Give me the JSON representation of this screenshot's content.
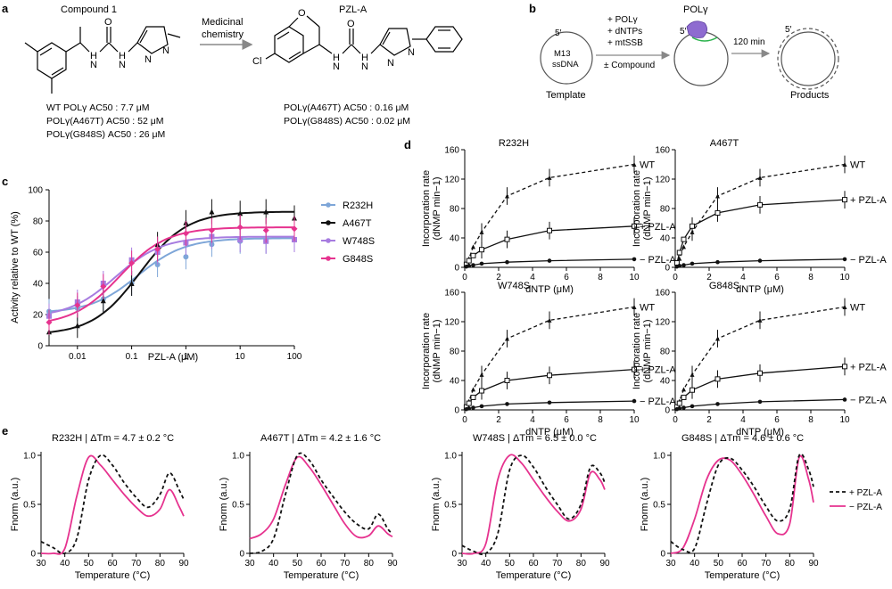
{
  "colors": {
    "R232H": "#7ea6d8",
    "A467T": "#111111",
    "W748S": "#a77ce0",
    "G848S": "#e6338f",
    "minus_pzl": "#e6338f",
    "plus_pzl": "#111111"
  },
  "panel_a": {
    "letter": "a",
    "compound1_title": "Compound 1",
    "arrow_label_1": "Medicinal",
    "arrow_label_2": "chemistry",
    "pzla_title": "PZL-A",
    "atoms": {
      "H": "H",
      "N": "N",
      "O": "O",
      "Cl": "Cl"
    },
    "compound1_ac50": [
      "WT POLγ AC50 : 7.7 μM",
      "POLγ(A467T) AC50 : 52 μM",
      "POLγ(G848S) AC50 : 26 μM"
    ],
    "pzla_ac50": [
      "POLγ(A467T) AC50 : 0.16 μM",
      "POLγ(G848S) AC50 : 0.02 μM"
    ]
  },
  "panel_b": {
    "letter": "b",
    "template_text_1": "M13",
    "template_text_2": "ssDNA",
    "five_prime": "5′",
    "reagents": [
      "+ POLγ",
      "+ dNTPs",
      "+ mtSSB",
      "± Compound"
    ],
    "pol_label": "POLγ",
    "time_label": "120 min",
    "template_label": "Template",
    "products_label": "Products"
  },
  "panel_c": {
    "letter": "c",
    "ylabel": "Activity relative to WT (%)",
    "xlabel": "PZL-A (μM)",
    "yticks": [
      "0",
      "20",
      "40",
      "60",
      "80",
      "100"
    ],
    "xticks": [
      "0.01",
      "0.1",
      "1",
      "10",
      "100"
    ]
  },
  "panel_d": {
    "letter": "d",
    "ylabel_1": "Incorporation rate",
    "ylabel_2": "(dNMP min−1)",
    "xlabel": "dNTP (μM)",
    "yticks": [
      "0",
      "40",
      "80",
      "120",
      "160"
    ],
    "xticks": [
      "0",
      "2",
      "4",
      "6",
      "8",
      "10"
    ],
    "curve_labels": [
      "WT",
      "+ PZL-A",
      "− PZL-A"
    ]
  },
  "panel_e": {
    "letter": "e",
    "ylabel": "Fnorm (a.u.)",
    "xlabel": "Temperature (°C)",
    "yticks": [
      "0",
      "0.5",
      "1.0"
    ],
    "xticks": [
      "30",
      "40",
      "50",
      "60",
      "70",
      "80",
      "90"
    ],
    "legend": [
      "+ PZL-A",
      "− PZL-A"
    ]
  },
  "chart_data": [
    {
      "type": "line",
      "panel": "c",
      "xlabel": "PZL-A (μM)",
      "ylabel": "Activity relative to WT (%)",
      "xscale": "log",
      "xlim": [
        0.003,
        100
      ],
      "ylim": [
        0,
        100
      ],
      "legend_position": "right",
      "x": [
        0.003,
        0.01,
        0.03,
        0.1,
        0.3,
        1,
        3,
        10,
        30,
        100
      ],
      "series": [
        {
          "name": "R232H",
          "values": [
            22,
            24,
            30,
            40,
            52,
            57,
            65,
            67,
            67,
            68
          ],
          "curve": {
            "bottom": 21,
            "top": 69,
            "ec50": 0.13
          }
        },
        {
          "name": "A467T",
          "values": [
            9,
            13,
            29,
            40,
            65,
            79,
            86,
            85,
            86,
            82
          ],
          "curve": {
            "bottom": 7,
            "top": 86,
            "ec50": 0.14
          }
        },
        {
          "name": "W748S",
          "values": [
            19,
            28,
            40,
            55,
            60,
            66,
            70,
            68,
            67,
            68
          ],
          "curve": {
            "bottom": 18,
            "top": 70,
            "ec50": 0.05
          }
        },
        {
          "name": "G848S",
          "values": [
            15,
            26,
            38,
            53,
            62,
            72,
            74,
            76,
            74,
            75
          ],
          "curve": {
            "bottom": 13,
            "top": 76,
            "ec50": 0.06
          }
        }
      ]
    },
    {
      "type": "line",
      "panel": "d",
      "subplots": [
        {
          "title": "R232H",
          "x": [
            0.1,
            0.25,
            0.5,
            1,
            2.5,
            5,
            10
          ],
          "series": [
            {
              "name": "WT",
              "values": [
                5,
                12,
                28,
                48,
                97,
                122,
                140
              ]
            },
            {
              "name": "+ PZL-A",
              "values": [
                4,
                9,
                16,
                24,
                38,
                50,
                56
              ]
            },
            {
              "name": "− PZL-A",
              "values": [
                1,
                2,
                3,
                5,
                7,
                9,
                11
              ]
            }
          ]
        },
        {
          "title": "A467T",
          "x": [
            0.1,
            0.25,
            0.5,
            1,
            2.5,
            5,
            10
          ],
          "series": [
            {
              "name": "WT",
              "values": [
                5,
                12,
                28,
                48,
                97,
                122,
                140
              ]
            },
            {
              "name": "+ PZL-A",
              "values": [
                6,
                20,
                38,
                56,
                74,
                85,
                92
              ]
            },
            {
              "name": "− PZL-A",
              "values": [
                1,
                2,
                3,
                5,
                7,
                9,
                11
              ]
            }
          ]
        },
        {
          "title": "W748S",
          "x": [
            0.1,
            0.25,
            0.5,
            1,
            2.5,
            5,
            10
          ],
          "series": [
            {
              "name": "WT",
              "values": [
                5,
                12,
                28,
                48,
                97,
                122,
                140
              ]
            },
            {
              "name": "+ PZL-A",
              "values": [
                4,
                9,
                17,
                26,
                40,
                47,
                55
              ]
            },
            {
              "name": "− PZL-A",
              "values": [
                1,
                2,
                3,
                5,
                8,
                10,
                12
              ]
            }
          ]
        },
        {
          "title": "G848S",
          "x": [
            0.1,
            0.25,
            0.5,
            1,
            2.5,
            5,
            10
          ],
          "series": [
            {
              "name": "WT",
              "values": [
                5,
                12,
                28,
                48,
                97,
                122,
                140
              ]
            },
            {
              "name": "+ PZL-A",
              "values": [
                4,
                9,
                17,
                27,
                42,
                50,
                59
              ]
            },
            {
              "name": "− PZL-A",
              "values": [
                1,
                2,
                3,
                5,
                8,
                11,
                14
              ]
            }
          ]
        }
      ],
      "xlim": [
        0,
        10
      ],
      "ylim": [
        0,
        160
      ]
    },
    {
      "type": "line",
      "panel": "e",
      "xlim": [
        30,
        90
      ],
      "ylim": [
        0,
        1.0
      ],
      "subplots": [
        {
          "title": "R232H",
          "annotation": "ΔTm = 4.7 ± 0.2 °C",
          "x": [
            30,
            35,
            40,
            45,
            50,
            55,
            60,
            65,
            70,
            75,
            80,
            84,
            88,
            90
          ],
          "series": [
            {
              "name": "− PZL-A",
              "values": [
                0.0,
                0.0,
                0.05,
                0.58,
                0.98,
                0.9,
                0.75,
                0.6,
                0.47,
                0.38,
                0.45,
                0.65,
                0.48,
                0.38
              ]
            },
            {
              "name": "+ PZL-A",
              "values": [
                0.12,
                0.06,
                0.0,
                0.15,
                0.75,
                1.0,
                0.9,
                0.72,
                0.57,
                0.47,
                0.6,
                0.82,
                0.65,
                0.55
              ]
            }
          ]
        },
        {
          "title": "A467T",
          "annotation": "ΔTm = 4.2 ± 1.6 °C",
          "x": [
            30,
            35,
            40,
            45,
            50,
            55,
            60,
            65,
            70,
            75,
            80,
            84,
            88,
            90
          ],
          "series": [
            {
              "name": "− PZL-A",
              "values": [
                0.15,
                0.2,
                0.35,
                0.7,
                0.98,
                0.88,
                0.7,
                0.5,
                0.3,
                0.17,
                0.18,
                0.28,
                0.2,
                0.17
              ]
            },
            {
              "name": "+ PZL-A",
              "values": [
                0.0,
                0.02,
                0.15,
                0.6,
                1.0,
                0.95,
                0.75,
                0.58,
                0.42,
                0.3,
                0.25,
                0.4,
                0.25,
                0.2
              ]
            }
          ]
        },
        {
          "title": "W748S",
          "annotation": "ΔTm = 6.5 ± 0.0 °C",
          "x": [
            30,
            35,
            40,
            45,
            50,
            55,
            60,
            65,
            70,
            75,
            80,
            84,
            88,
            90
          ],
          "series": [
            {
              "name": "− PZL-A",
              "values": [
                0.0,
                0.0,
                0.1,
                0.75,
                1.0,
                0.92,
                0.75,
                0.58,
                0.43,
                0.33,
                0.45,
                0.82,
                0.75,
                0.65
              ]
            },
            {
              "name": "+ PZL-A",
              "values": [
                0.08,
                0.02,
                0.0,
                0.2,
                0.85,
                1.0,
                0.88,
                0.68,
                0.5,
                0.35,
                0.5,
                0.88,
                0.82,
                0.72
              ]
            }
          ]
        },
        {
          "title": "G848S",
          "annotation": "ΔTm = 4.6 ± 0.6 °C",
          "x": [
            30,
            35,
            40,
            45,
            50,
            55,
            60,
            65,
            70,
            75,
            80,
            84,
            88,
            90
          ],
          "series": [
            {
              "name": "− PZL-A",
              "values": [
                0.0,
                0.05,
                0.35,
                0.75,
                0.95,
                0.95,
                0.8,
                0.6,
                0.38,
                0.2,
                0.3,
                0.98,
                0.75,
                0.52
              ]
            },
            {
              "name": "+ PZL-A",
              "values": [
                0.12,
                0.04,
                0.05,
                0.5,
                0.9,
                0.97,
                0.85,
                0.68,
                0.48,
                0.33,
                0.45,
                1.0,
                0.85,
                0.68
              ]
            }
          ]
        }
      ]
    }
  ]
}
